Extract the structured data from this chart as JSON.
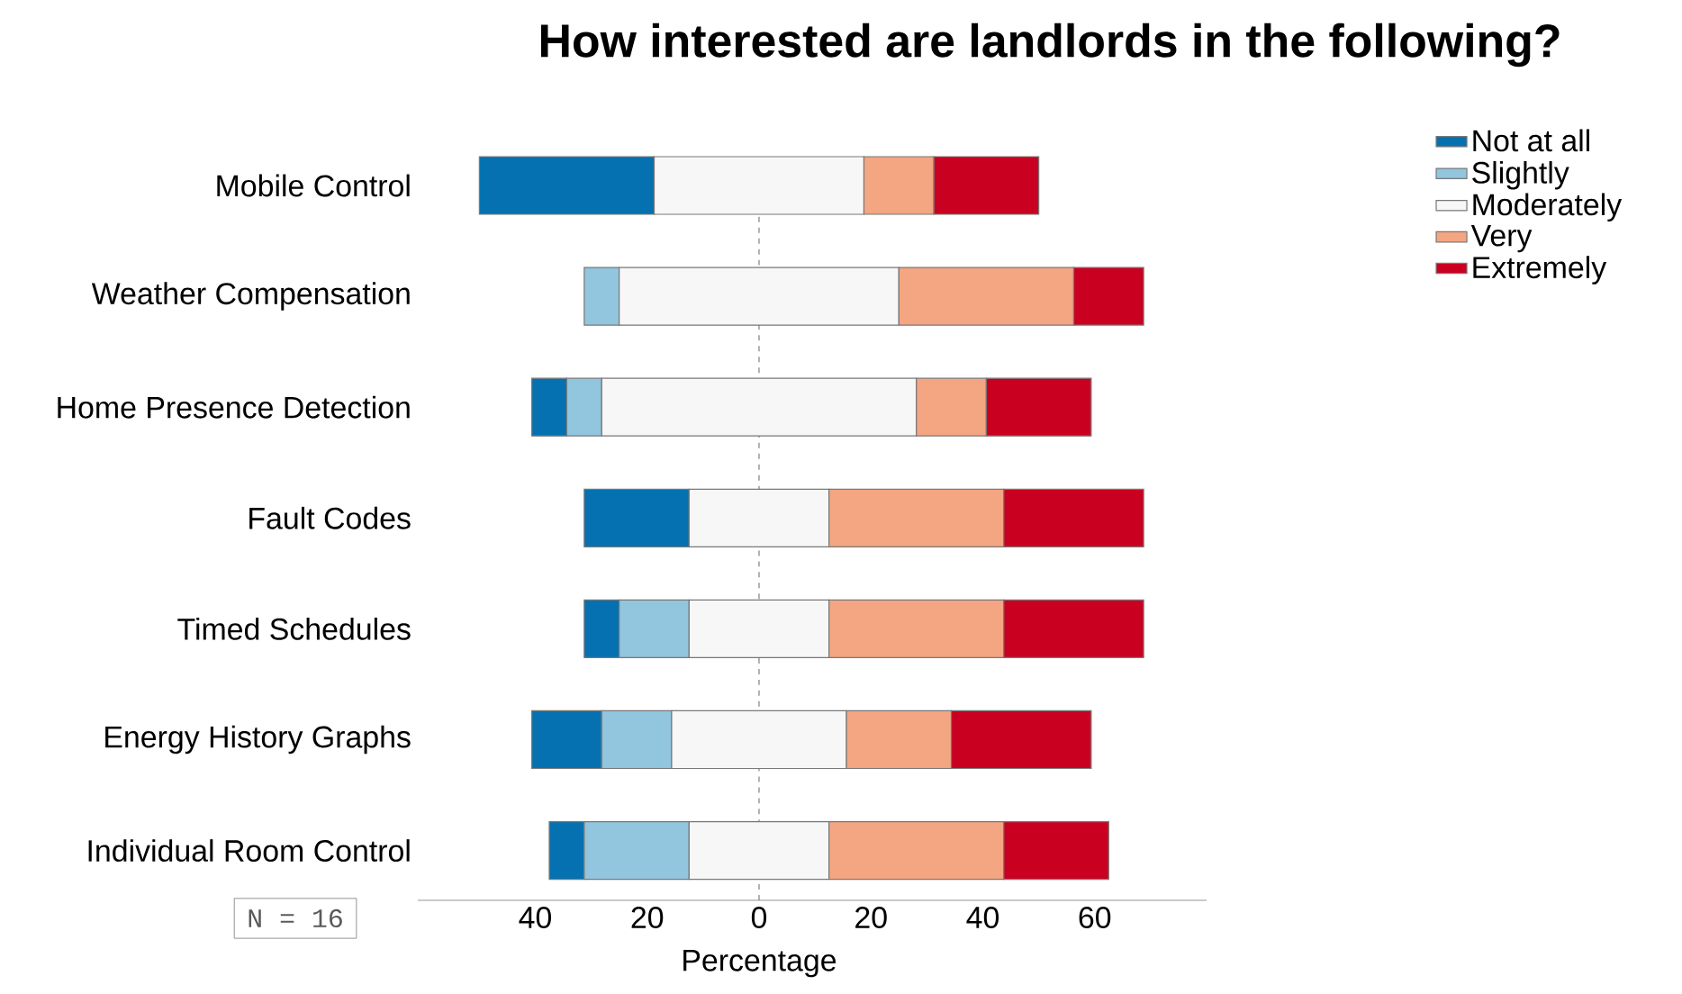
{
  "chart_data": {
    "type": "bar",
    "orientation": "horizontal",
    "title": "How interested are landlords in the following?",
    "xlabel": "Percentage",
    "categories": [
      "Mobile Control",
      "Weather Compensation",
      "Home Presence Detection",
      "Fault Codes",
      "Timed Schedules",
      "Energy History Graphs",
      "Individual Room Control"
    ],
    "series": [
      {
        "name": "Not at all",
        "color": "#0571b0",
        "base": [
          -50,
          null,
          -40.625,
          -31.25,
          -31.25,
          -40.625,
          -37.5
        ],
        "values": [
          31.25,
          null,
          6.25,
          18.75,
          6.25,
          12.5,
          6.25
        ]
      },
      {
        "name": "Slightly",
        "color": "#92c5de",
        "base": [
          null,
          -31.25,
          -34.375,
          null,
          -25,
          -28.125,
          -31.25
        ],
        "values": [
          null,
          6.25,
          6.25,
          null,
          12.5,
          12.5,
          18.75
        ]
      },
      {
        "name": "Moderately",
        "color": "#f7f7f7",
        "base": [
          -18.75,
          -25,
          -28.125,
          -12.5,
          -12.5,
          -15.625,
          -12.5
        ],
        "values": [
          37.5,
          50,
          56.25,
          25,
          25,
          31.25,
          25
        ]
      },
      {
        "name": "Very",
        "color": "#f4a582",
        "base": [
          18.75,
          25,
          28.125,
          12.5,
          12.5,
          15.625,
          12.5
        ],
        "values": [
          12.5,
          31.25,
          12.5,
          31.25,
          31.25,
          18.75,
          31.25
        ]
      },
      {
        "name": "Extremely",
        "color": "#ca0020",
        "base": [
          31.25,
          56.25,
          40.625,
          43.75,
          43.75,
          34.375,
          43.75
        ],
        "values": [
          18.75,
          12.5,
          18.75,
          25,
          25,
          25,
          18.75
        ]
      }
    ],
    "xlim": [
      -61,
      80
    ],
    "xticks": [
      {
        "value": -40,
        "label": "40"
      },
      {
        "value": -20,
        "label": "20"
      },
      0,
      20,
      40,
      60
    ],
    "ref_lines": [
      {
        "axis": "x",
        "value": 0,
        "color": "#808080",
        "line_style": "dashed"
      }
    ],
    "legend": "right",
    "annotations": [
      "N = 16"
    ]
  }
}
